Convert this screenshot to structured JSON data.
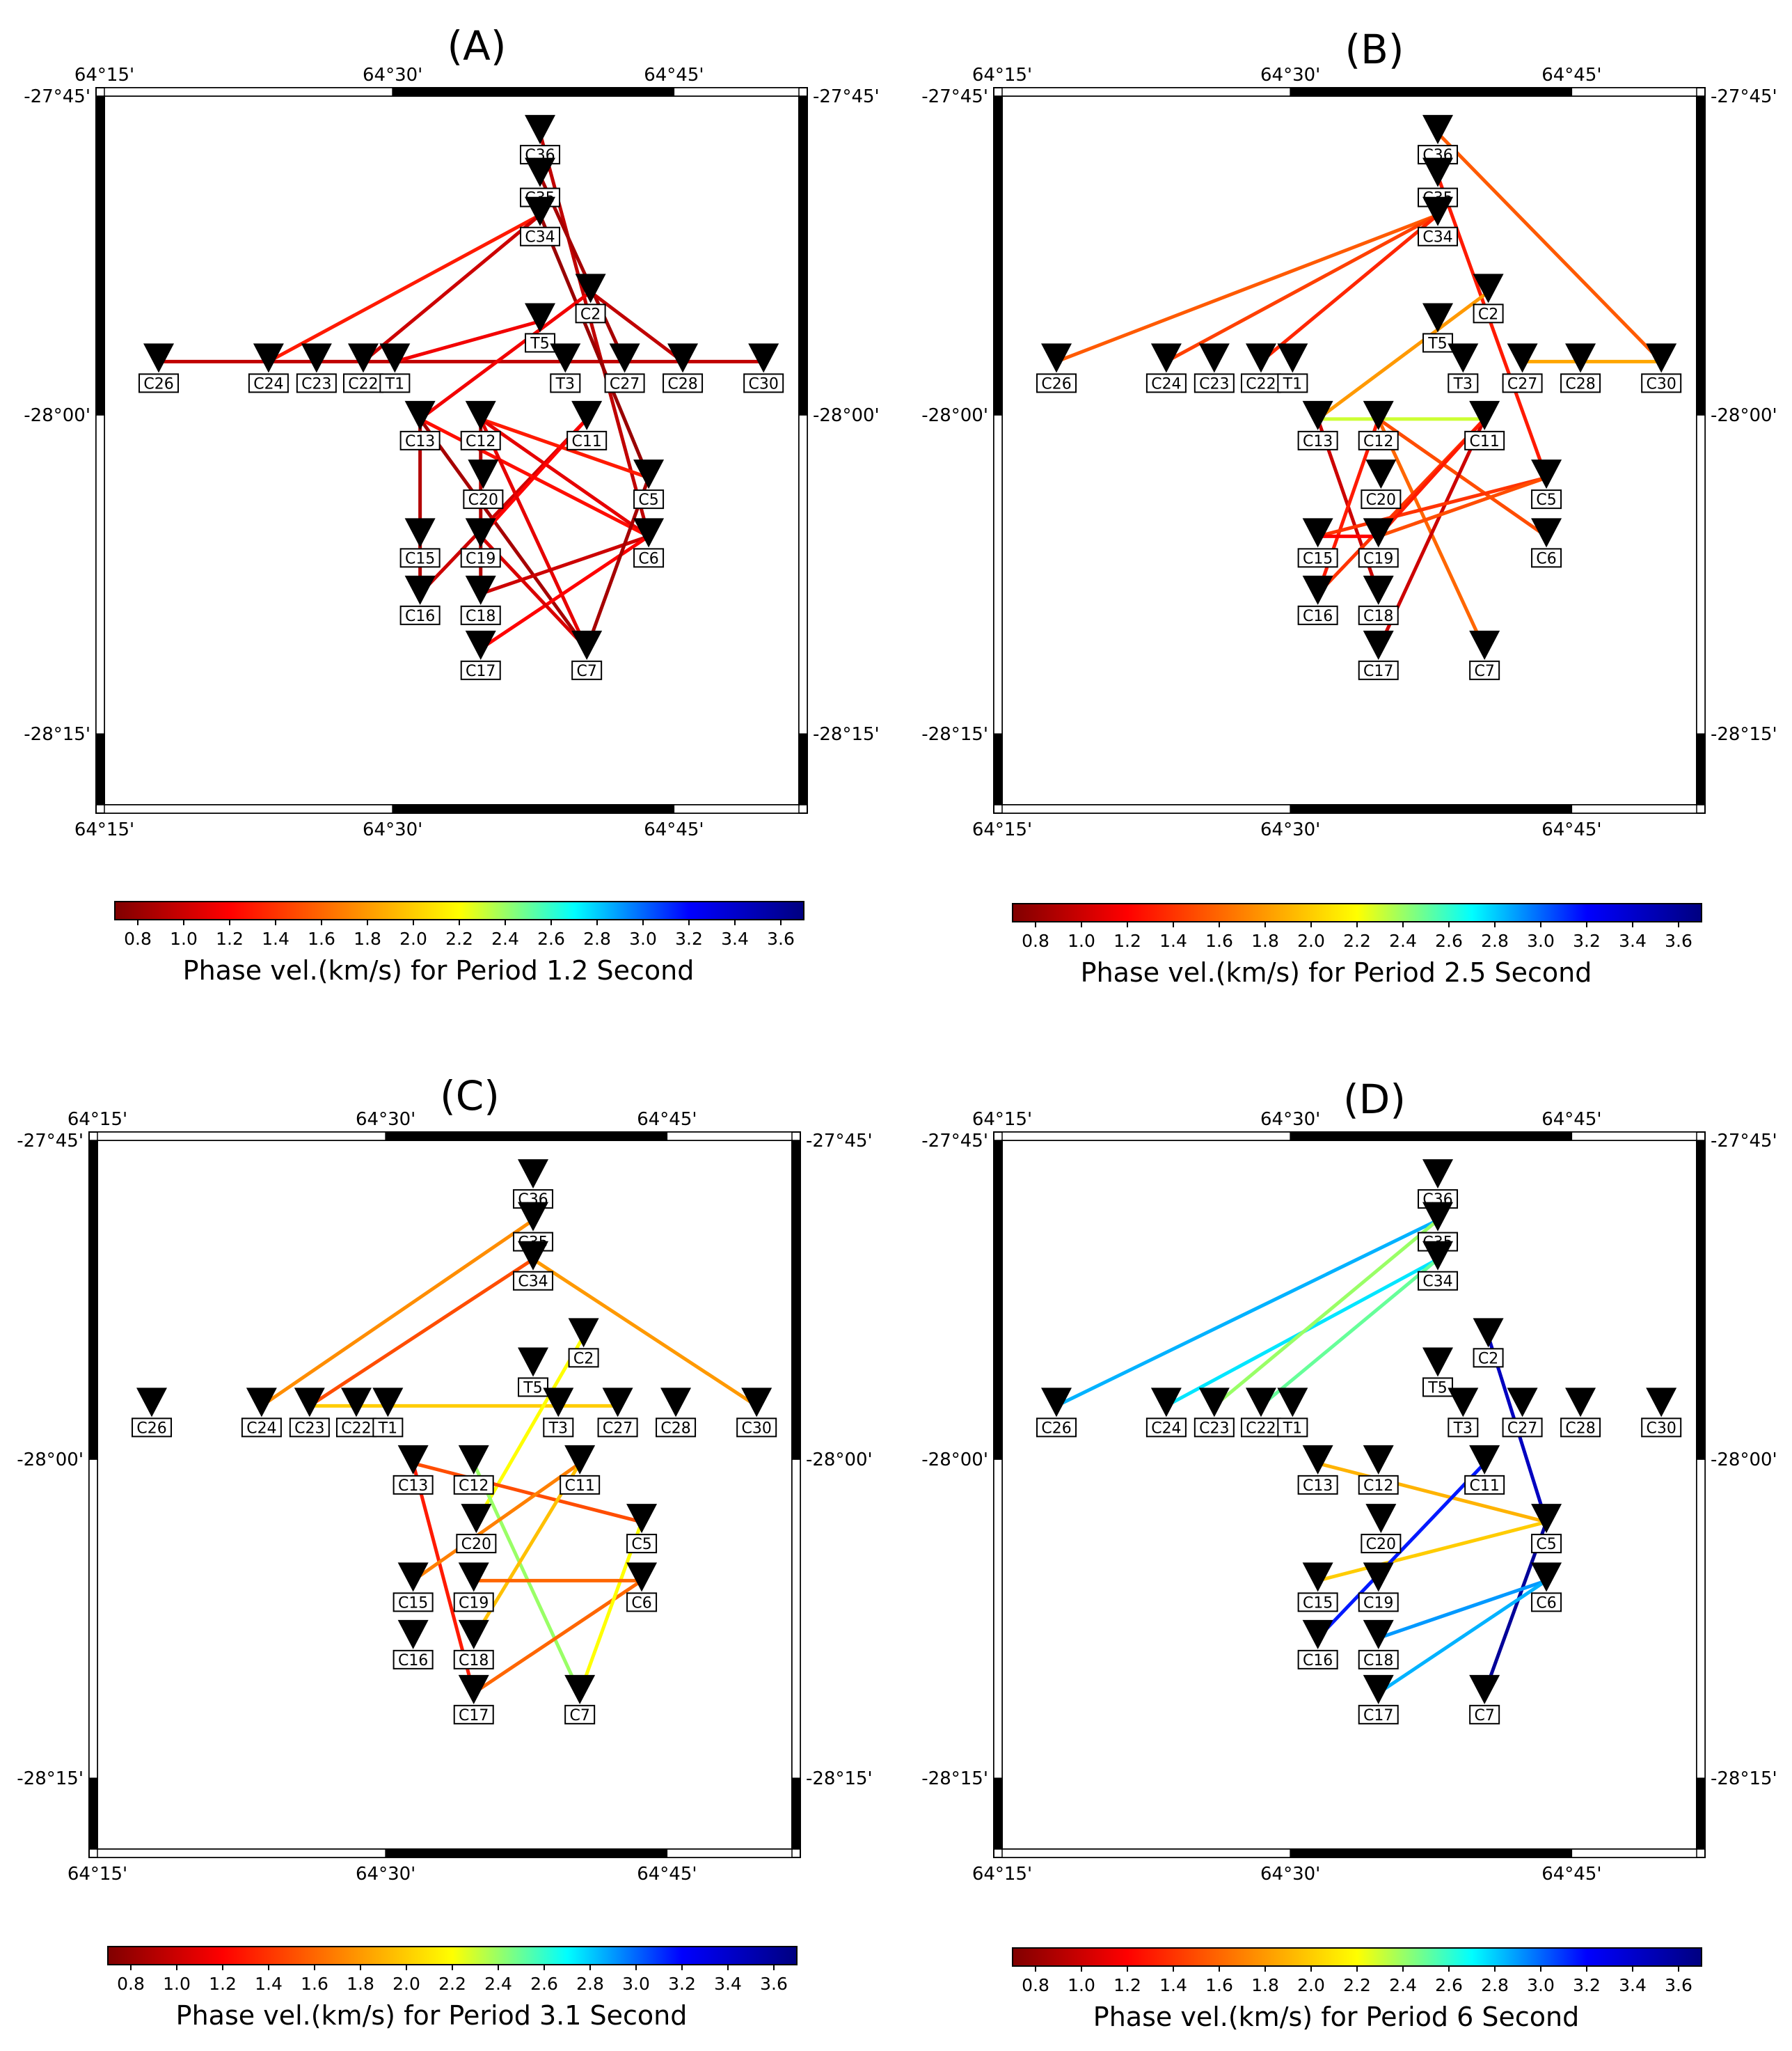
{
  "colorbar": {
    "stops": [
      "#800000",
      "#ff0000",
      "#ff8000",
      "#ffff00",
      "#00ffff",
      "#0000ff",
      "#000080"
    ],
    "ticks": [
      "0.8",
      "1.0",
      "1.2",
      "1.4",
      "1.6",
      "1.8",
      "2.0",
      "2.2",
      "2.4",
      "2.6",
      "2.8",
      "3.0",
      "3.2",
      "3.4",
      "3.6"
    ],
    "range": [
      0.7,
      3.7
    ]
  },
  "map": {
    "lon_ticks": [
      "64°15'",
      "64°30'",
      "64°45'"
    ],
    "lat_ticks": [
      "-27°45'",
      "-28°00'",
      "-28°15'"
    ]
  },
  "chart_data": [
    {
      "type": "map-ray-paths",
      "title": "(A)",
      "colorbar_label": "Phase vel.(km/s) for Period 1.2 Second",
      "xlim_deg": [
        64.25,
        64.8
      ],
      "ylim_deg": [
        -28.33,
        -27.75
      ],
      "stations": [
        {
          "name": "C36",
          "lon": 64.595,
          "lat": -27.778
        },
        {
          "name": "C35",
          "lon": 64.595,
          "lat": -27.813
        },
        {
          "name": "C34",
          "lon": 64.595,
          "lat": -27.845
        },
        {
          "name": "C2",
          "lon": 64.635,
          "lat": -27.908
        },
        {
          "name": "T5",
          "lon": 64.595,
          "lat": -27.932
        },
        {
          "name": "T3",
          "lon": 64.615,
          "lat": -27.965
        },
        {
          "name": "C27",
          "lon": 64.662,
          "lat": -27.965
        },
        {
          "name": "C28",
          "lon": 64.708,
          "lat": -27.965
        },
        {
          "name": "C30",
          "lon": 64.772,
          "lat": -27.965
        },
        {
          "name": "C26",
          "lon": 64.293,
          "lat": -27.965
        },
        {
          "name": "C24",
          "lon": 64.38,
          "lat": -27.965
        },
        {
          "name": "C23",
          "lon": 64.418,
          "lat": -27.965
        },
        {
          "name": "C22",
          "lon": 64.455,
          "lat": -27.965
        },
        {
          "name": "T1",
          "lon": 64.48,
          "lat": -27.965
        },
        {
          "name": "C13",
          "lon": 64.5,
          "lat": -28.012
        },
        {
          "name": "C12",
          "lon": 64.548,
          "lat": -28.012
        },
        {
          "name": "C11",
          "lon": 64.632,
          "lat": -28.012
        },
        {
          "name": "C20",
          "lon": 64.55,
          "lat": -28.06
        },
        {
          "name": "C5",
          "lon": 64.681,
          "lat": -28.06
        },
        {
          "name": "C15",
          "lon": 64.5,
          "lat": -28.108
        },
        {
          "name": "C19",
          "lon": 64.548,
          "lat": -28.108
        },
        {
          "name": "C6",
          "lon": 64.681,
          "lat": -28.108
        },
        {
          "name": "C16",
          "lon": 64.5,
          "lat": -28.155
        },
        {
          "name": "C18",
          "lon": 64.548,
          "lat": -28.155
        },
        {
          "name": "C17",
          "lon": 64.548,
          "lat": -28.2
        },
        {
          "name": "C7",
          "lon": 64.632,
          "lat": -28.2
        }
      ],
      "paths": [
        {
          "from": "C26",
          "to": "C30",
          "v": 0.95
        },
        {
          "from": "C24",
          "to": "C34",
          "v": 1.3
        },
        {
          "from": "C22",
          "to": "C34",
          "v": 1.0
        },
        {
          "from": "T1",
          "to": "T5",
          "v": 1.15
        },
        {
          "from": "C36",
          "to": "C6",
          "v": 0.95
        },
        {
          "from": "C35",
          "to": "C27",
          "v": 0.85
        },
        {
          "from": "C34",
          "to": "C5",
          "v": 0.8
        },
        {
          "from": "C2",
          "to": "C13",
          "v": 1.15
        },
        {
          "from": "C2",
          "to": "C28",
          "v": 0.95
        },
        {
          "from": "C13",
          "to": "C7",
          "v": 0.85
        },
        {
          "from": "C11",
          "to": "C16",
          "v": 1.0
        },
        {
          "from": "C12",
          "to": "C5",
          "v": 1.3
        },
        {
          "from": "C12",
          "to": "C6",
          "v": 1.1
        },
        {
          "from": "C13",
          "to": "C6",
          "v": 1.25
        },
        {
          "from": "C11",
          "to": "C19",
          "v": 1.2
        },
        {
          "from": "C12",
          "to": "C7",
          "v": 1.1
        },
        {
          "from": "C18",
          "to": "C6",
          "v": 1.0
        },
        {
          "from": "C17",
          "to": "C6",
          "v": 1.2
        },
        {
          "from": "C5",
          "to": "C7",
          "v": 0.85
        },
        {
          "from": "C13",
          "to": "C16",
          "v": 0.9
        },
        {
          "from": "C12",
          "to": "C18",
          "v": 0.9
        },
        {
          "from": "C19",
          "to": "C7",
          "v": 1.05
        }
      ]
    },
    {
      "type": "map-ray-paths",
      "title": "(B)",
      "colorbar_label": "Phase vel.(km/s) for Period 2.5 Second",
      "xlim_deg": [
        64.25,
        64.8
      ],
      "ylim_deg": [
        -28.33,
        -27.75
      ],
      "stations": [
        {
          "name": "C36",
          "lon": 64.595,
          "lat": -27.778
        },
        {
          "name": "C35",
          "lon": 64.595,
          "lat": -27.813
        },
        {
          "name": "C34",
          "lon": 64.595,
          "lat": -27.845
        },
        {
          "name": "C2",
          "lon": 64.635,
          "lat": -27.908
        },
        {
          "name": "T5",
          "lon": 64.595,
          "lat": -27.932
        },
        {
          "name": "T3",
          "lon": 64.615,
          "lat": -27.965
        },
        {
          "name": "C27",
          "lon": 64.662,
          "lat": -27.965
        },
        {
          "name": "C28",
          "lon": 64.708,
          "lat": -27.965
        },
        {
          "name": "C30",
          "lon": 64.772,
          "lat": -27.965
        },
        {
          "name": "C26",
          "lon": 64.293,
          "lat": -27.965
        },
        {
          "name": "C24",
          "lon": 64.38,
          "lat": -27.965
        },
        {
          "name": "C23",
          "lon": 64.418,
          "lat": -27.965
        },
        {
          "name": "C22",
          "lon": 64.455,
          "lat": -27.965
        },
        {
          "name": "T1",
          "lon": 64.48,
          "lat": -27.965
        },
        {
          "name": "C13",
          "lon": 64.5,
          "lat": -28.012
        },
        {
          "name": "C12",
          "lon": 64.548,
          "lat": -28.012
        },
        {
          "name": "C11",
          "lon": 64.632,
          "lat": -28.012
        },
        {
          "name": "C20",
          "lon": 64.55,
          "lat": -28.06
        },
        {
          "name": "C5",
          "lon": 64.681,
          "lat": -28.06
        },
        {
          "name": "C15",
          "lon": 64.5,
          "lat": -28.108
        },
        {
          "name": "C19",
          "lon": 64.548,
          "lat": -28.108
        },
        {
          "name": "C6",
          "lon": 64.681,
          "lat": -28.108
        },
        {
          "name": "C16",
          "lon": 64.5,
          "lat": -28.155
        },
        {
          "name": "C18",
          "lon": 64.548,
          "lat": -28.155
        },
        {
          "name": "C17",
          "lon": 64.548,
          "lat": -28.2
        },
        {
          "name": "C7",
          "lon": 64.632,
          "lat": -28.2
        }
      ],
      "paths": [
        {
          "from": "C26",
          "to": "C34",
          "v": 1.55
        },
        {
          "from": "C24",
          "to": "C34",
          "v": 1.45
        },
        {
          "from": "C22",
          "to": "C34",
          "v": 1.35
        },
        {
          "from": "C36",
          "to": "C30",
          "v": 1.55
        },
        {
          "from": "C35",
          "to": "C5",
          "v": 1.3
        },
        {
          "from": "C27",
          "to": "C30",
          "v": 1.85
        },
        {
          "from": "C2",
          "to": "C13",
          "v": 1.8
        },
        {
          "from": "C13",
          "to": "C11",
          "v": 2.3
        },
        {
          "from": "C13",
          "to": "C18",
          "v": 1.0
        },
        {
          "from": "C12",
          "to": "C6",
          "v": 1.5
        },
        {
          "from": "C12",
          "to": "C7",
          "v": 1.6
        },
        {
          "from": "C11",
          "to": "C16",
          "v": 1.4
        },
        {
          "from": "C11",
          "to": "C17",
          "v": 1.0
        },
        {
          "from": "C12",
          "to": "C16",
          "v": 1.3
        },
        {
          "from": "C15",
          "to": "C5",
          "v": 1.4
        },
        {
          "from": "C19",
          "to": "C5",
          "v": 1.5
        },
        {
          "from": "C19",
          "to": "C11",
          "v": 1.3
        },
        {
          "from": "C15",
          "to": "C19",
          "v": 1.2
        }
      ]
    },
    {
      "type": "map-ray-paths",
      "title": "(C)",
      "colorbar_label": "Phase vel.(km/s) for Period 3.1 Second",
      "xlim_deg": [
        64.25,
        64.8
      ],
      "ylim_deg": [
        -28.33,
        -27.75
      ],
      "stations": [
        {
          "name": "C36",
          "lon": 64.595,
          "lat": -27.778
        },
        {
          "name": "C35",
          "lon": 64.595,
          "lat": -27.813
        },
        {
          "name": "C34",
          "lon": 64.595,
          "lat": -27.845
        },
        {
          "name": "C2",
          "lon": 64.635,
          "lat": -27.908
        },
        {
          "name": "T5",
          "lon": 64.595,
          "lat": -27.932
        },
        {
          "name": "T3",
          "lon": 64.615,
          "lat": -27.965
        },
        {
          "name": "C27",
          "lon": 64.662,
          "lat": -27.965
        },
        {
          "name": "C28",
          "lon": 64.708,
          "lat": -27.965
        },
        {
          "name": "C30",
          "lon": 64.772,
          "lat": -27.965
        },
        {
          "name": "C26",
          "lon": 64.293,
          "lat": -27.965
        },
        {
          "name": "C24",
          "lon": 64.38,
          "lat": -27.965
        },
        {
          "name": "C23",
          "lon": 64.418,
          "lat": -27.965
        },
        {
          "name": "C22",
          "lon": 64.455,
          "lat": -27.965
        },
        {
          "name": "T1",
          "lon": 64.48,
          "lat": -27.965
        },
        {
          "name": "C13",
          "lon": 64.5,
          "lat": -28.012
        },
        {
          "name": "C12",
          "lon": 64.548,
          "lat": -28.012
        },
        {
          "name": "C11",
          "lon": 64.632,
          "lat": -28.012
        },
        {
          "name": "C20",
          "lon": 64.55,
          "lat": -28.06
        },
        {
          "name": "C5",
          "lon": 64.681,
          "lat": -28.06
        },
        {
          "name": "C15",
          "lon": 64.5,
          "lat": -28.108
        },
        {
          "name": "C19",
          "lon": 64.548,
          "lat": -28.108
        },
        {
          "name": "C6",
          "lon": 64.681,
          "lat": -28.108
        },
        {
          "name": "C16",
          "lon": 64.5,
          "lat": -28.155
        },
        {
          "name": "C18",
          "lon": 64.548,
          "lat": -28.155
        },
        {
          "name": "C17",
          "lon": 64.548,
          "lat": -28.2
        },
        {
          "name": "C7",
          "lon": 64.632,
          "lat": -28.2
        }
      ],
      "paths": [
        {
          "from": "C24",
          "to": "C35",
          "v": 1.75
        },
        {
          "from": "C23",
          "to": "C34",
          "v": 1.5
        },
        {
          "from": "C34",
          "to": "C30",
          "v": 1.8
        },
        {
          "from": "C23",
          "to": "C27",
          "v": 2.0
        },
        {
          "from": "C2",
          "to": "C20",
          "v": 2.2
        },
        {
          "from": "C13",
          "to": "C5",
          "v": 1.5
        },
        {
          "from": "C13",
          "to": "C17",
          "v": 1.3
        },
        {
          "from": "C12",
          "to": "C7",
          "v": 2.4
        },
        {
          "from": "C11",
          "to": "C15",
          "v": 1.7
        },
        {
          "from": "C11",
          "to": "C18",
          "v": 1.95
        },
        {
          "from": "C17",
          "to": "C6",
          "v": 1.6
        },
        {
          "from": "C5",
          "to": "C7",
          "v": 2.2
        },
        {
          "from": "C19",
          "to": "C6",
          "v": 1.6
        }
      ]
    },
    {
      "type": "map-ray-paths",
      "title": "(D)",
      "colorbar_label": "Phase vel.(km/s) for Period 6 Second",
      "xlim_deg": [
        64.25,
        64.8
      ],
      "ylim_deg": [
        -28.33,
        -27.75
      ],
      "stations": [
        {
          "name": "C36",
          "lon": 64.595,
          "lat": -27.778
        },
        {
          "name": "C35",
          "lon": 64.595,
          "lat": -27.813
        },
        {
          "name": "C34",
          "lon": 64.595,
          "lat": -27.845
        },
        {
          "name": "C2",
          "lon": 64.635,
          "lat": -27.908
        },
        {
          "name": "T5",
          "lon": 64.595,
          "lat": -27.932
        },
        {
          "name": "T3",
          "lon": 64.615,
          "lat": -27.965
        },
        {
          "name": "C27",
          "lon": 64.662,
          "lat": -27.965
        },
        {
          "name": "C28",
          "lon": 64.708,
          "lat": -27.965
        },
        {
          "name": "C30",
          "lon": 64.772,
          "lat": -27.965
        },
        {
          "name": "C26",
          "lon": 64.293,
          "lat": -27.965
        },
        {
          "name": "C24",
          "lon": 64.38,
          "lat": -27.965
        },
        {
          "name": "C23",
          "lon": 64.418,
          "lat": -27.965
        },
        {
          "name": "C22",
          "lon": 64.455,
          "lat": -27.965
        },
        {
          "name": "T1",
          "lon": 64.48,
          "lat": -27.965
        },
        {
          "name": "C13",
          "lon": 64.5,
          "lat": -28.012
        },
        {
          "name": "C12",
          "lon": 64.548,
          "lat": -28.012
        },
        {
          "name": "C11",
          "lon": 64.632,
          "lat": -28.012
        },
        {
          "name": "C20",
          "lon": 64.55,
          "lat": -28.06
        },
        {
          "name": "C5",
          "lon": 64.681,
          "lat": -28.06
        },
        {
          "name": "C15",
          "lon": 64.5,
          "lat": -28.108
        },
        {
          "name": "C19",
          "lon": 64.548,
          "lat": -28.108
        },
        {
          "name": "C6",
          "lon": 64.681,
          "lat": -28.108
        },
        {
          "name": "C16",
          "lon": 64.5,
          "lat": -28.155
        },
        {
          "name": "C18",
          "lon": 64.548,
          "lat": -28.155
        },
        {
          "name": "C17",
          "lon": 64.548,
          "lat": -28.2
        },
        {
          "name": "C7",
          "lon": 64.632,
          "lat": -28.2
        }
      ],
      "paths": [
        {
          "from": "C26",
          "to": "C35",
          "v": 2.85
        },
        {
          "from": "C24",
          "to": "C34",
          "v": 2.75
        },
        {
          "from": "C23",
          "to": "C35",
          "v": 2.4
        },
        {
          "from": "C22",
          "to": "C34",
          "v": 2.5
        },
        {
          "from": "C2",
          "to": "C5",
          "v": 3.45
        },
        {
          "from": "C5",
          "to": "C7",
          "v": 3.6
        },
        {
          "from": "C13",
          "to": "C5",
          "v": 1.9
        },
        {
          "from": "C15",
          "to": "C5",
          "v": 2.0
        },
        {
          "from": "C11",
          "to": "C16",
          "v": 3.15
        },
        {
          "from": "C18",
          "to": "C6",
          "v": 2.9
        },
        {
          "from": "C17",
          "to": "C6",
          "v": 2.85
        }
      ]
    }
  ]
}
